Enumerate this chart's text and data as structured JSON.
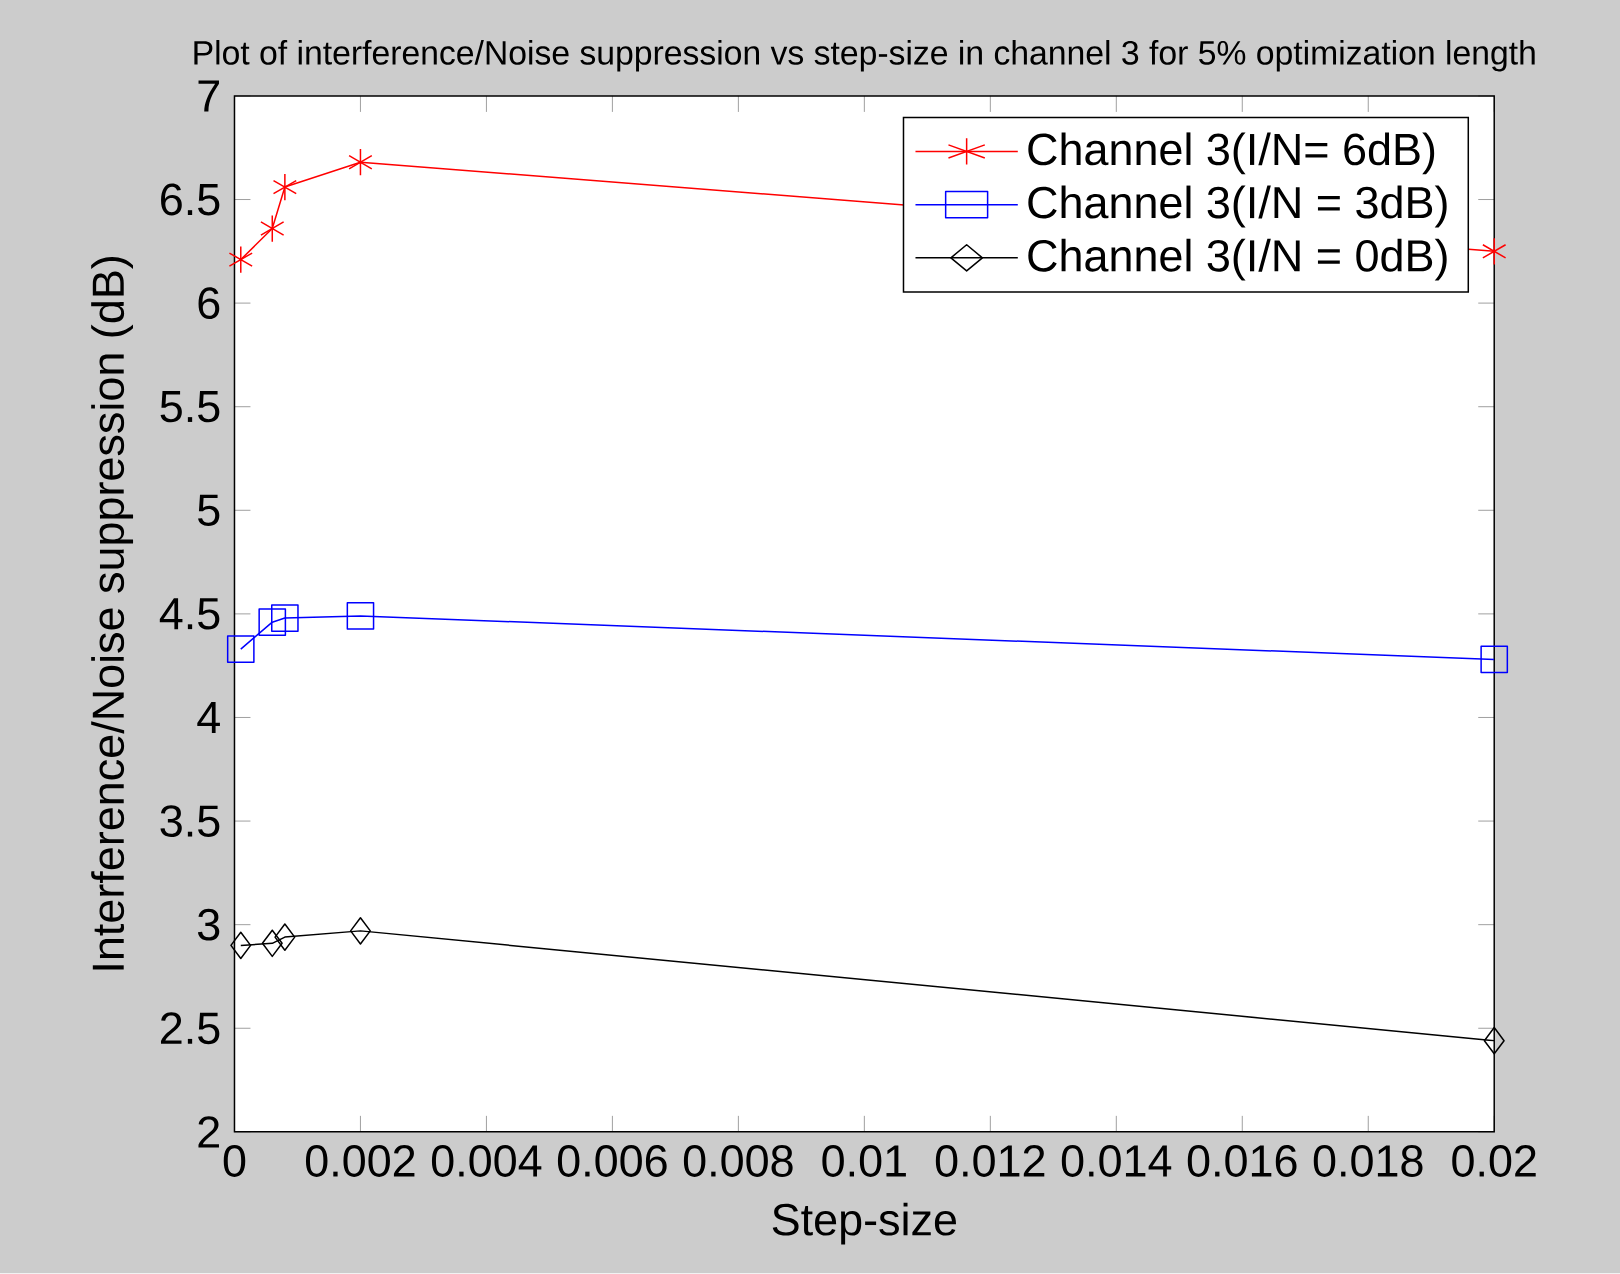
{
  "chart_data": {
    "type": "line",
    "title": "Plot of interference/Noise suppression vs step-size in channel 3 for 5% optimization length",
    "xlabel": "Step-size",
    "ylabel": "Interference/Noise suppression (dB)",
    "x": [
      0.0001,
      0.0006,
      0.0008,
      0.002,
      0.02
    ],
    "series": [
      {
        "name": "Channel 3(I/N= 6dB)",
        "color": "#ff0000",
        "marker": "cross",
        "values": [
          6.21,
          6.36,
          6.56,
          6.68,
          6.25
        ]
      },
      {
        "name": "Channel 3(I/N = 3dB)",
        "color": "#0000ff",
        "marker": "square",
        "values": [
          4.33,
          4.46,
          4.48,
          4.49,
          4.28
        ]
      },
      {
        "name": "Channel 3(I/N = 0dB)",
        "color": "#000000",
        "marker": "diamond",
        "values": [
          2.9,
          2.91,
          2.94,
          2.97,
          2.44
        ]
      }
    ],
    "xlim": [
      0,
      0.02
    ],
    "ylim": [
      2,
      7
    ],
    "xticks": [
      0,
      0.002,
      0.004,
      0.006,
      0.008,
      0.01,
      0.012,
      0.014,
      0.016,
      0.018,
      0.02
    ],
    "yticks": [
      2,
      2.5,
      3,
      3.5,
      4,
      4.5,
      5,
      5.5,
      6,
      6.5,
      7
    ],
    "legend": "top right",
    "grid": false,
    "line_style": "solid"
  }
}
